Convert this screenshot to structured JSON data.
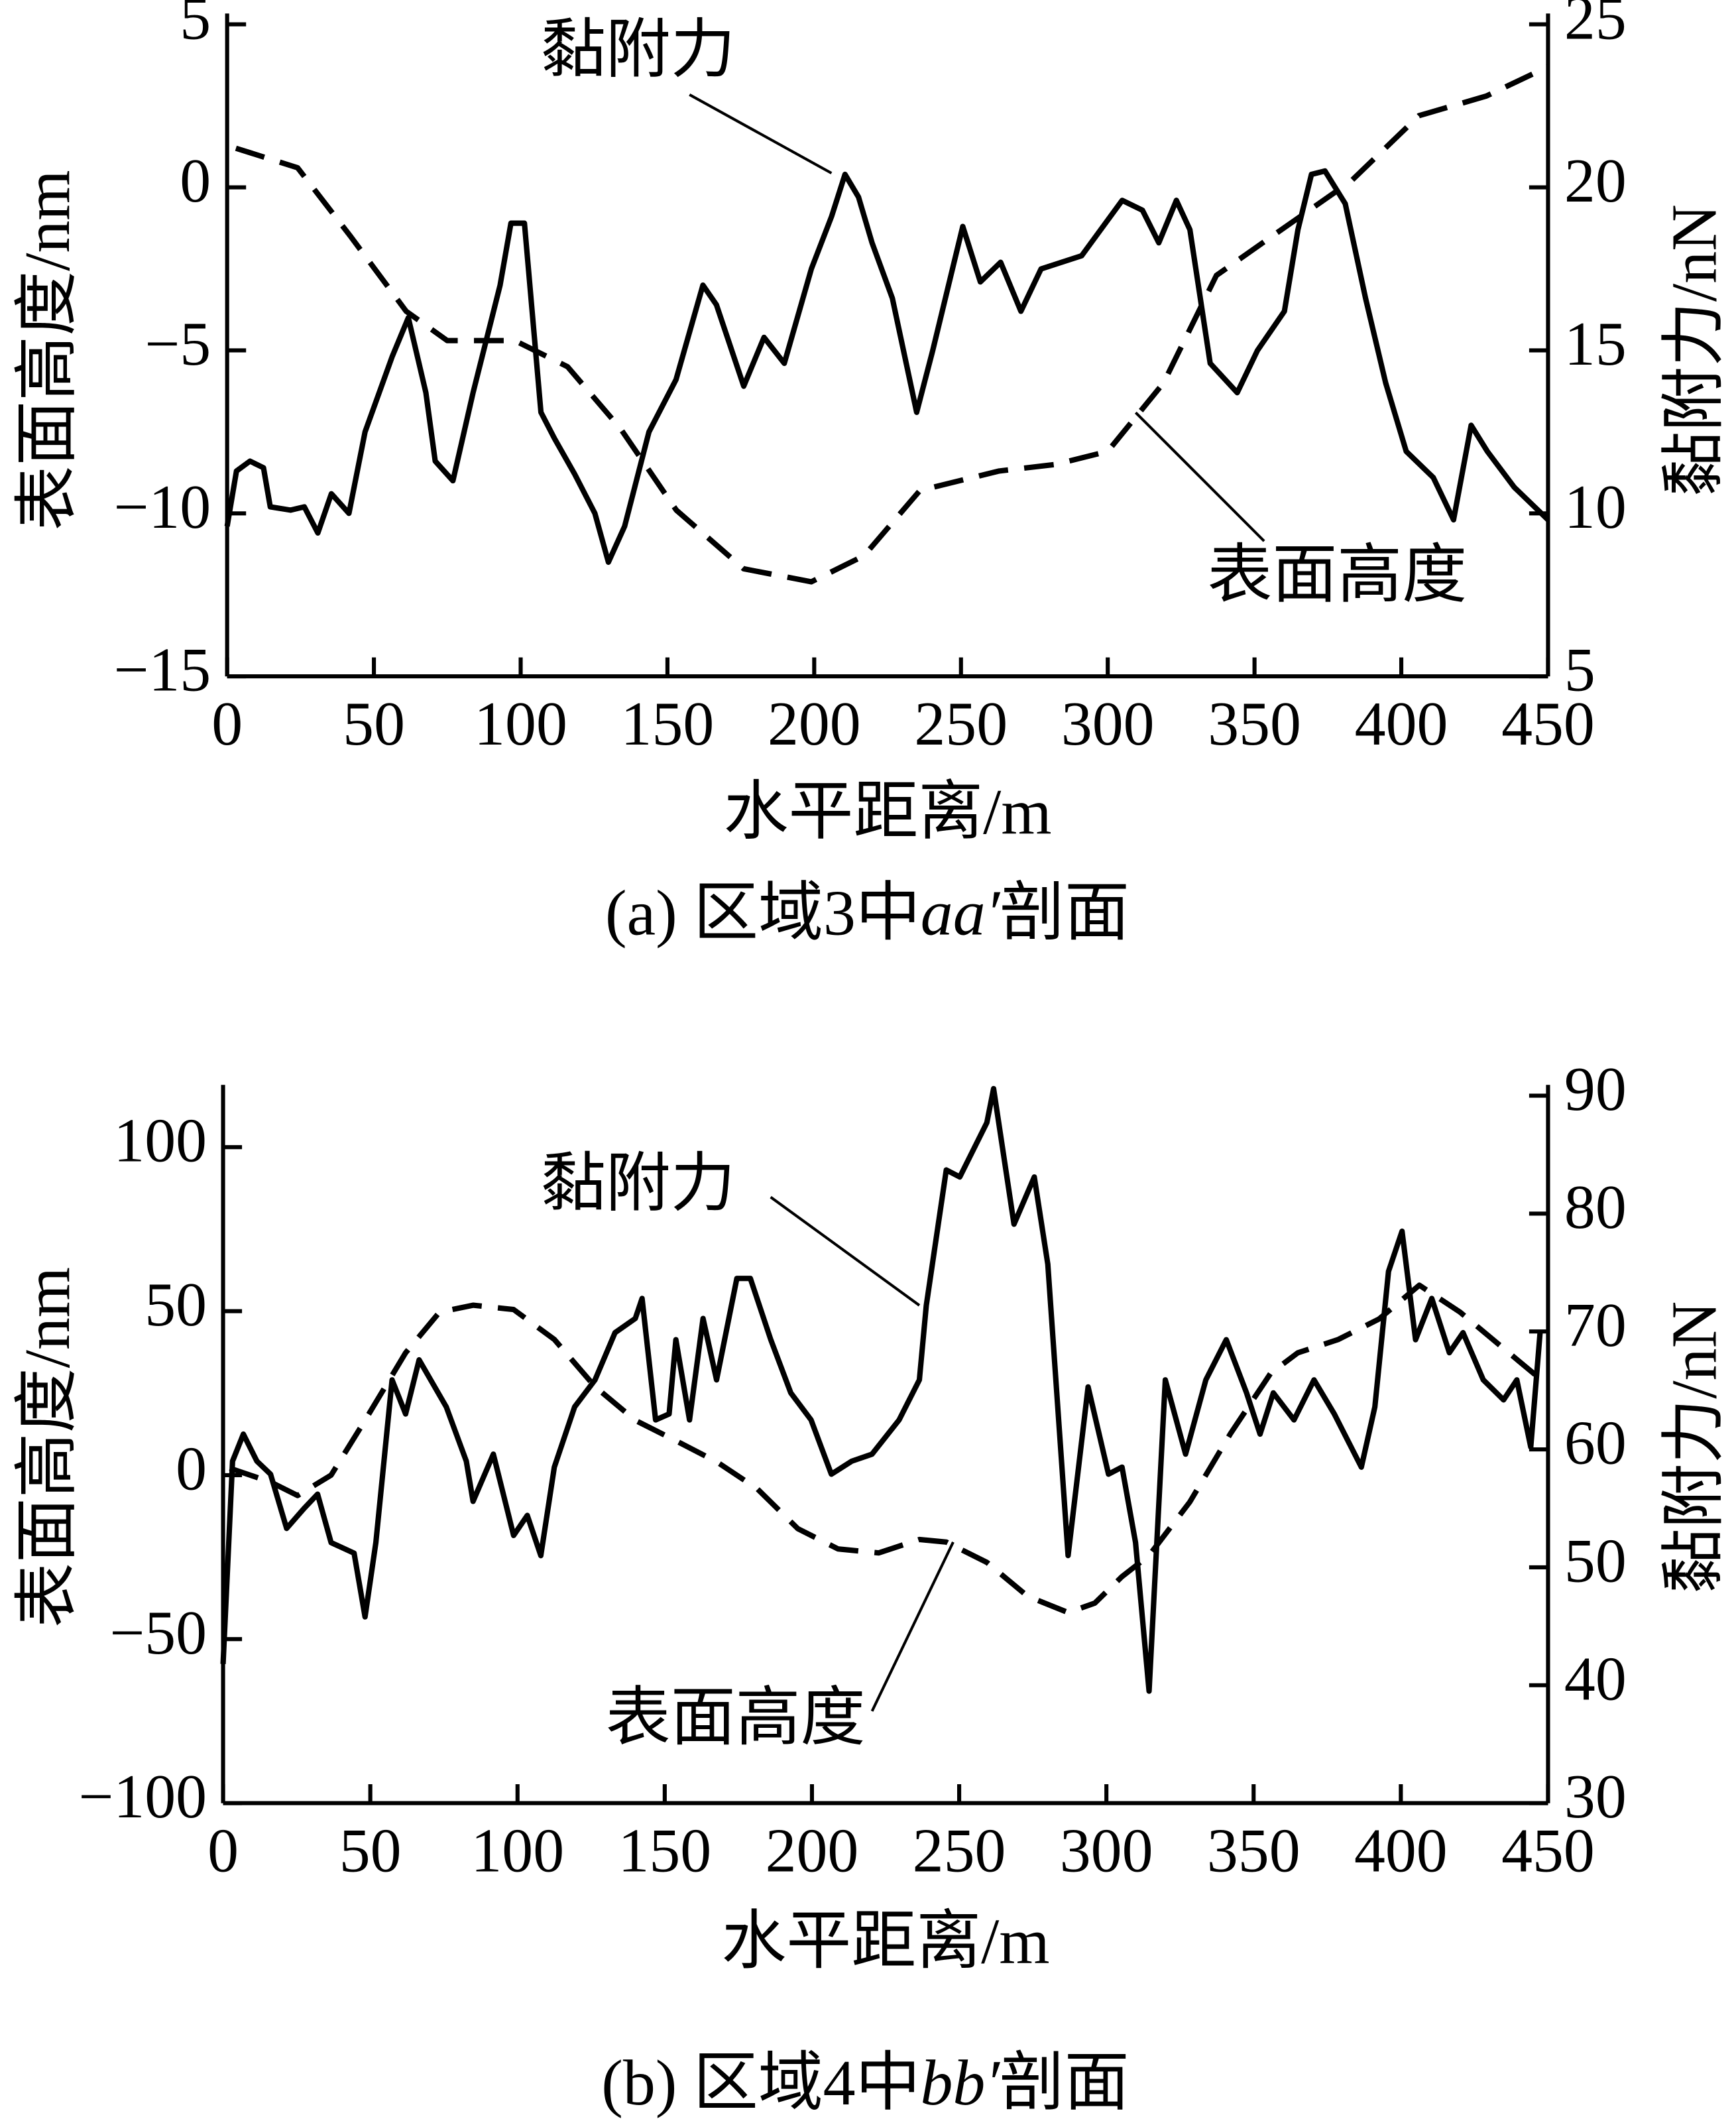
{
  "chart_data": [
    {
      "type": "line",
      "caption": [
        "(a) 区域3中",
        "aa′",
        "剖面"
      ],
      "xlabel": "水平距离/m",
      "ylabel": "表面高度/nm",
      "y2label": "黏附力/nN",
      "xlim": [
        0,
        450
      ],
      "xticks": [
        0,
        50,
        100,
        150,
        200,
        250,
        300,
        350,
        400,
        450
      ],
      "ylim": [
        -15,
        5
      ],
      "yticks": [
        {
          "value": -15,
          "label": "−15"
        },
        {
          "value": -10,
          "label": "−10"
        },
        {
          "value": -5,
          "label": "−5"
        },
        0,
        5
      ],
      "y2lim": [
        5,
        25
      ],
      "y2ticks": [
        5,
        10,
        15,
        20,
        25
      ],
      "series": [
        {
          "name": "表面高度",
          "color": "#000000",
          "line_style": "dashed",
          "x": [
            3,
            24,
            42,
            61,
            75,
            98,
            116,
            134,
            153,
            176,
            199,
            217,
            236,
            263,
            282,
            300,
            319,
            337,
            356,
            383,
            406,
            429,
            450
          ],
          "values": [
            1.2,
            0.6,
            -1.5,
            -3.8,
            -4.7,
            -4.7,
            -5.5,
            -7.4,
            -9.9,
            -11.7,
            -12.1,
            -11.3,
            -9.3,
            -8.7,
            -8.5,
            -8.1,
            -6.0,
            -2.7,
            -1.5,
            0.2,
            2.2,
            2.8,
            3.7
          ]
        },
        {
          "name": "黏附力",
          "color": "#000000",
          "line_style": "solid",
          "axis": "y2",
          "x": [
            0,
            3.2,
            7.8,
            12.4,
            14.7,
            21.6,
            26.3,
            30.9,
            35.5,
            41.5,
            47.0,
            56.2,
            61.7,
            67.7,
            70.9,
            76.9,
            83.8,
            93.0,
            96.7,
            101.3,
            106.9,
            111.5,
            118.4,
            125.3,
            129.9,
            135.4,
            143.7,
            152.9,
            162.1,
            166.7,
            176.0,
            182.9,
            189.8,
            199.0,
            205.9,
            210.5,
            215.1,
            219.7,
            226.6,
            234.9,
            240.4,
            250.6,
            256.6,
            263.5,
            270.4,
            277.3,
            291.1,
            304.9,
            311.8,
            317.4,
            323.4,
            328.0,
            334.9,
            344.1,
            351.0,
            360.2,
            364.8,
            369.4,
            374.0,
            380.9,
            387.8,
            394.7,
            401.7,
            410.9,
            417.8,
            423.8,
            429.3,
            438.5,
            450
          ],
          "values": [
            9.6,
            11.3,
            11.6,
            11.4,
            10.2,
            10.1,
            10.2,
            9.4,
            10.6,
            10.0,
            12.5,
            14.8,
            16.0,
            13.7,
            11.6,
            11.0,
            13.7,
            17.0,
            18.9,
            18.9,
            13.1,
            12.3,
            11.2,
            10.0,
            8.5,
            9.6,
            12.5,
            14.1,
            17.0,
            16.4,
            13.9,
            15.4,
            14.6,
            17.5,
            19.1,
            20.4,
            19.7,
            18.3,
            16.6,
            13.1,
            15.0,
            18.8,
            17.1,
            17.7,
            16.2,
            17.5,
            17.9,
            19.6,
            19.3,
            18.3,
            19.6,
            18.7,
            14.6,
            13.7,
            15.0,
            16.2,
            18.7,
            20.4,
            20.5,
            19.5,
            16.6,
            14.0,
            11.9,
            11.1,
            9.8,
            12.7,
            11.9,
            10.8,
            9.8
          ]
        }
      ]
    },
    {
      "type": "line",
      "caption": [
        "(b) 区域4中",
        "bb′",
        "剖面"
      ],
      "xlabel": "水平距离/m",
      "ylabel": "表面高度/nm",
      "y2label": "黏附力/nN",
      "xlim": [
        0,
        450
      ],
      "xticks": [
        0,
        50,
        100,
        150,
        200,
        250,
        300,
        350,
        400,
        450
      ],
      "ylim": [
        -100,
        115.7
      ],
      "yticks": [
        {
          "value": -100,
          "label": "−100"
        },
        {
          "value": -50,
          "label": "−50"
        },
        0,
        50,
        100
      ],
      "y2lim": [
        30,
        90
      ],
      "y2ticks": [
        30,
        40,
        50,
        60,
        70,
        80,
        90
      ],
      "series": [
        {
          "name": "表面高度",
          "color": "#000000",
          "line_style": "dashed",
          "x": [
            2.3,
            16.1,
            25.3,
            36.7,
            48.2,
            62,
            73.5,
            84.9,
            98.7,
            112.5,
            126.3,
            140,
            153.8,
            167.6,
            181.4,
            195.2,
            208.9,
            222.7,
            236.5,
            245.6,
            259.4,
            273.2,
            287,
            296.1,
            305.3,
            314.5,
            328.3,
            342.1,
            355.8,
            365,
            378.8,
            392.6,
            406.3,
            420.1,
            433.9,
            447.7
          ],
          "values": [
            2.1,
            -2.1,
            -6.2,
            0,
            16.7,
            37.3,
            49.7,
            51.8,
            50.5,
            41.4,
            27.0,
            16.7,
            10.5,
            4.1,
            -4.1,
            -16.3,
            -22.5,
            -23.7,
            -19.6,
            -20.4,
            -26.6,
            -36.9,
            -41.9,
            -39.0,
            -30.9,
            -24.5,
            -8.2,
            12.6,
            31.1,
            37.3,
            41.4,
            47.6,
            57.9,
            49.7,
            39.4,
            29.1
          ]
        },
        {
          "name": "黏附力",
          "color": "#000000",
          "line_style": "solid",
          "axis": "y2",
          "x": [
            0,
            3.2,
            6.9,
            11.5,
            16.1,
            21.6,
            27.5,
            32.1,
            36.7,
            44.5,
            48.2,
            51.9,
            57.4,
            62.0,
            66.6,
            75.8,
            82.6,
            84.9,
            91.8,
            98.7,
            103.3,
            107.9,
            112.5,
            119.4,
            126.3,
            133.1,
            140.0,
            142.3,
            146.9,
            151.5,
            153.8,
            158.4,
            163.0,
            167.6,
            174.5,
            179.1,
            186.0,
            192.8,
            199.7,
            206.6,
            213.5,
            220.4,
            229.6,
            236.5,
            238.8,
            245.6,
            250.2,
            259.4,
            261.7,
            268.6,
            275.5,
            280.1,
            287.0,
            293.8,
            300.7,
            305.3,
            309.9,
            314.5,
            320.0,
            326.9,
            333.8,
            340.7,
            347.6,
            352.2,
            356.7,
            363.7,
            370.5,
            377.4,
            386.6,
            391.2,
            395.8,
            400.4,
            405.0,
            410.5,
            416.5,
            421.1,
            428.0,
            434.9,
            439.4,
            444.1,
            447.3
          ],
          "values": [
            41.8,
            59.0,
            61.3,
            59.0,
            57.9,
            53.3,
            55.0,
            56.2,
            52.1,
            51.2,
            45.8,
            52.1,
            65.9,
            63.0,
            67.6,
            63.6,
            59.0,
            55.6,
            59.6,
            52.7,
            54.4,
            51.0,
            58.5,
            63.6,
            65.9,
            69.9,
            71.1,
            72.8,
            62.5,
            63.0,
            69.3,
            62.5,
            71.1,
            65.9,
            74.5,
            74.5,
            69.3,
            64.8,
            62.5,
            57.9,
            59.0,
            59.6,
            62.5,
            65.9,
            72.2,
            83.7,
            83.1,
            87.7,
            90.6,
            79.1,
            83.1,
            75.7,
            51.0,
            65.3,
            57.9,
            58.5,
            52.1,
            39.5,
            65.9,
            59.6,
            65.9,
            69.3,
            64.8,
            61.3,
            64.8,
            62.5,
            65.9,
            63.0,
            58.5,
            63.6,
            75.1,
            78.5,
            69.3,
            72.8,
            68.2,
            69.9,
            65.9,
            64.2,
            65.9,
            60.2,
            69.9
          ]
        }
      ]
    }
  ]
}
